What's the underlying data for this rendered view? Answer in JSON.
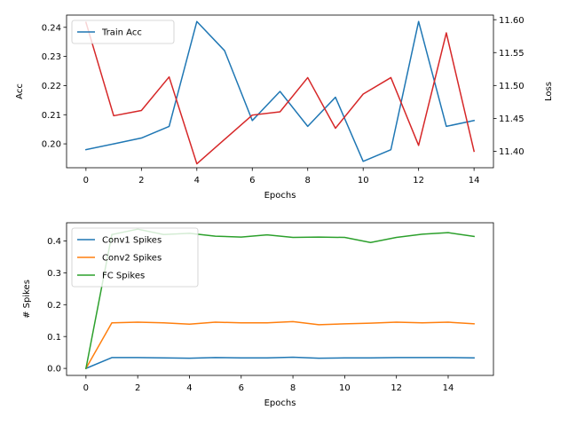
{
  "chart_data": [
    {
      "type": "line",
      "xlabel": "Epochs",
      "ylabel": "Acc",
      "y2label": "Loss",
      "xlim": [
        -0.7,
        14.7
      ],
      "ylim": [
        0.1918,
        0.2442
      ],
      "y2lim": [
        11.375,
        11.607
      ],
      "xticks": [
        0,
        2,
        4,
        6,
        8,
        10,
        12,
        14
      ],
      "xtick_labels": [
        "0",
        "2",
        "4",
        "6",
        "8",
        "10",
        "12",
        "14"
      ],
      "yticks": [
        0.2,
        0.21,
        0.22,
        0.23,
        0.24
      ],
      "ytick_labels": [
        "0.20",
        "0.21",
        "0.22",
        "0.23",
        "0.24"
      ],
      "y2ticks": [
        11.4,
        11.45,
        11.5,
        11.55,
        11.6
      ],
      "y2tick_labels": [
        "11.40",
        "11.45",
        "11.50",
        "11.55",
        "11.60"
      ],
      "grid": false,
      "legend": "upper-left",
      "series": [
        {
          "name": "Train Acc",
          "axis": "left",
          "color": "#1f77b4",
          "x": [
            0,
            1,
            2,
            3,
            4,
            5,
            6,
            7,
            8,
            9,
            10,
            11,
            12,
            13,
            14
          ],
          "values": [
            0.198,
            0.2,
            0.202,
            0.206,
            0.242,
            0.232,
            0.208,
            0.218,
            0.206,
            0.216,
            0.194,
            0.198,
            0.242,
            0.206,
            0.208
          ]
        },
        {
          "axis": "right",
          "color": "#d62728",
          "x": [
            0,
            1,
            2,
            3,
            4,
            5,
            6,
            7,
            8,
            9,
            10,
            11,
            12,
            13,
            14
          ],
          "values": [
            11.596,
            11.454,
            11.462,
            11.513,
            11.381,
            11.418,
            11.455,
            11.46,
            11.512,
            11.435,
            11.487,
            11.512,
            11.409,
            11.58,
            11.4
          ]
        }
      ]
    },
    {
      "type": "line",
      "xlabel": "Epochs",
      "ylabel": "# Spikes",
      "xlim": [
        -0.75,
        15.75
      ],
      "ylim": [
        -0.022,
        0.457
      ],
      "xticks": [
        0,
        2,
        4,
        6,
        8,
        10,
        12,
        14
      ],
      "xtick_labels": [
        "0",
        "2",
        "4",
        "6",
        "8",
        "10",
        "12",
        "14"
      ],
      "yticks": [
        0.0,
        0.1,
        0.2,
        0.3,
        0.4
      ],
      "ytick_labels": [
        "0.0",
        "0.1",
        "0.2",
        "0.3",
        "0.4"
      ],
      "grid": false,
      "legend": "upper-left",
      "series": [
        {
          "name": "Conv1 Spikes",
          "color": "#1f77b4",
          "x": [
            0,
            1,
            2,
            3,
            4,
            5,
            6,
            7,
            8,
            9,
            10,
            11,
            12,
            13,
            14,
            15
          ],
          "values": [
            0.0,
            0.034,
            0.034,
            0.033,
            0.032,
            0.034,
            0.033,
            0.033,
            0.035,
            0.032,
            0.033,
            0.033,
            0.034,
            0.034,
            0.034,
            0.033
          ]
        },
        {
          "name": "Conv2 Spikes",
          "color": "#ff7f0e",
          "x": [
            0,
            1,
            2,
            3,
            4,
            5,
            6,
            7,
            8,
            9,
            10,
            11,
            12,
            13,
            14,
            15
          ],
          "values": [
            0.0,
            0.143,
            0.145,
            0.143,
            0.139,
            0.145,
            0.143,
            0.143,
            0.147,
            0.137,
            0.14,
            0.142,
            0.145,
            0.143,
            0.145,
            0.14
          ]
        },
        {
          "name": "FC Spikes",
          "color": "#2ca02c",
          "x": [
            0,
            1,
            2,
            3,
            4,
            5,
            6,
            7,
            8,
            9,
            10,
            11,
            12,
            13,
            14,
            15
          ],
          "values": [
            0.0,
            0.42,
            0.437,
            0.42,
            0.424,
            0.415,
            0.412,
            0.419,
            0.411,
            0.412,
            0.411,
            0.395,
            0.411,
            0.421,
            0.426,
            0.414
          ]
        }
      ]
    }
  ]
}
